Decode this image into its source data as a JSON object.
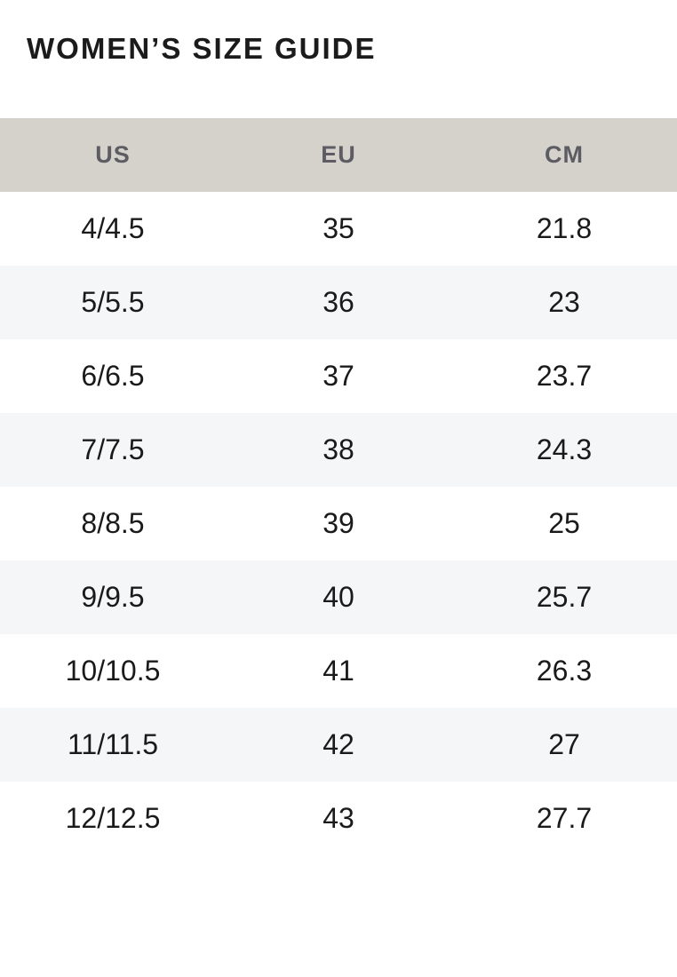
{
  "page": {
    "title": "WOMEN’S SIZE GUIDE"
  },
  "colors": {
    "header_bg": "#d5d2cc",
    "header_text": "#5c5c62",
    "stripe_bg": "#f5f6f8",
    "cell_text": "#1a1a1a",
    "title_text": "#1b1b1b",
    "page_bg": "#ffffff"
  },
  "table": {
    "headers": [
      "US",
      "EU",
      "CM"
    ],
    "rows": [
      [
        "4/4.5",
        "35",
        "21.8"
      ],
      [
        "5/5.5",
        "36",
        "23"
      ],
      [
        "6/6.5",
        "37",
        "23.7"
      ],
      [
        "7/7.5",
        "38",
        "24.3"
      ],
      [
        "8/8.5",
        "39",
        "25"
      ],
      [
        "9/9.5",
        "40",
        "25.7"
      ],
      [
        "10/10.5",
        "41",
        "26.3"
      ],
      [
        "11/11.5",
        "42",
        "27"
      ],
      [
        "12/12.5",
        "43",
        "27.7"
      ]
    ]
  }
}
